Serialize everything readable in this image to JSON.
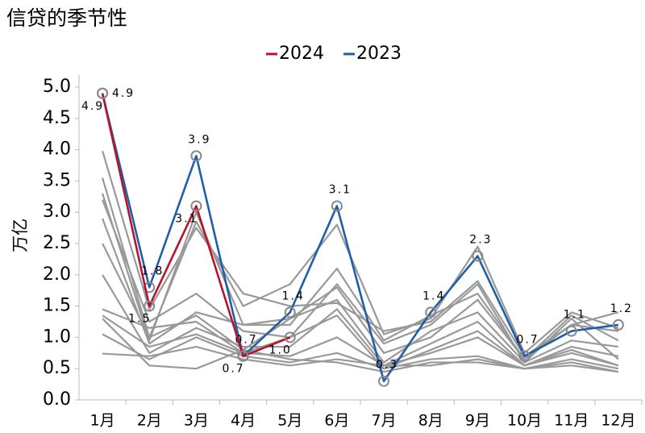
{
  "chart_data": {
    "type": "line",
    "title": "信贷的季节性",
    "ylabel": "万亿",
    "categories": [
      "1月",
      "2月",
      "3月",
      "4月",
      "5月",
      "6月",
      "7月",
      "8月",
      "9月",
      "10月",
      "11月",
      "12月"
    ],
    "ylim": [
      0,
      5
    ],
    "yticks": [
      {
        "value": 0,
        "label": "0.0"
      },
      {
        "value": 0.5,
        "label": "0.5"
      },
      {
        "value": 1,
        "label": "1.0"
      },
      {
        "value": 1.5,
        "label": "1.5"
      },
      {
        "value": 2,
        "label": "2.0"
      },
      {
        "value": 2.5,
        "label": "2.5"
      },
      {
        "value": 3,
        "label": "3.0"
      },
      {
        "value": 3.5,
        "label": "3.5"
      },
      {
        "value": 4,
        "label": "4.0"
      },
      {
        "value": 4.5,
        "label": "4.5"
      },
      {
        "value": 5,
        "label": "5.0"
      }
    ],
    "legend": "top",
    "series": [
      {
        "name": "2024",
        "color": "#b5152b",
        "values": [
          4.9,
          1.5,
          3.1,
          0.7,
          1.0,
          null,
          null,
          null,
          null,
          null,
          null,
          null
        ],
        "value_labels": [
          "4.9",
          "1.5",
          "3.1",
          "0.7",
          "1.0",
          null,
          null,
          null,
          null,
          null,
          null,
          null
        ]
      },
      {
        "name": "2023",
        "color": "#1f5ea8",
        "values": [
          4.9,
          1.8,
          3.9,
          0.7,
          1.4,
          3.1,
          0.3,
          1.4,
          2.3,
          0.7,
          1.1,
          1.2
        ],
        "value_labels": [
          "4.9",
          "1.8",
          "3.9",
          "0.7",
          "1.4",
          "3.1",
          "0.3",
          "1.4",
          "2.3",
          "0.7",
          "1.1",
          "1.2"
        ]
      },
      {
        "color": "#999999",
        "values": [
          3.98,
          1.45,
          2.75,
          1.7,
          1.5,
          1.55,
          1.1,
          1.25,
          1.9,
          0.7,
          1.2,
          1.4
        ]
      },
      {
        "color": "#999999",
        "values": [
          3.55,
          1.0,
          2.85,
          1.5,
          1.85,
          2.8,
          1.05,
          1.3,
          2.45,
          0.75,
          1.4,
          1.15
        ]
      },
      {
        "color": "#999999",
        "values": [
          3.3,
          0.95,
          3.0,
          1.2,
          1.2,
          2.1,
          0.95,
          1.35,
          1.7,
          0.65,
          1.35,
          0.95
        ]
      },
      {
        "color": "#999999",
        "values": [
          3.2,
          1.25,
          1.7,
          1.1,
          1.0,
          1.85,
          0.9,
          1.2,
          1.85,
          0.6,
          1.3,
          0.65
        ]
      },
      {
        "color": "#999999",
        "values": [
          2.9,
          0.9,
          1.4,
          1.2,
          1.3,
          1.8,
          0.75,
          1.0,
          1.6,
          0.65,
          1.2,
          1.1
        ]
      },
      {
        "color": "#999999",
        "values": [
          2.5,
          1.0,
          1.35,
          0.8,
          1.3,
          1.6,
          0.6,
          1.1,
          1.4,
          0.6,
          0.95,
          0.85
        ]
      },
      {
        "color": "#999999",
        "values": [
          2.0,
          0.75,
          1.15,
          0.85,
          0.85,
          1.45,
          0.55,
          0.9,
          1.25,
          0.55,
          0.85,
          0.7
        ]
      },
      {
        "color": "#999999",
        "values": [
          1.45,
          1.15,
          1.25,
          0.75,
          1.0,
          1.35,
          0.5,
          0.8,
          1.1,
          0.55,
          0.8,
          0.55
        ]
      },
      {
        "color": "#999999",
        "values": [
          1.35,
          0.85,
          1.05,
          0.75,
          0.7,
          1.0,
          0.55,
          0.75,
          1.0,
          0.55,
          0.75,
          0.55
        ]
      },
      {
        "color": "#999999",
        "values": [
          1.05,
          0.65,
          1.0,
          0.7,
          0.6,
          0.75,
          0.5,
          0.65,
          0.7,
          0.5,
          0.65,
          0.5
        ]
      },
      {
        "color": "#999999",
        "values": [
          0.74,
          0.7,
          0.85,
          0.65,
          0.55,
          0.65,
          0.55,
          0.55,
          0.65,
          0.5,
          0.6,
          0.45
        ]
      },
      {
        "color": "#999999",
        "values": [
          1.3,
          0.55,
          0.5,
          0.8,
          0.65,
          0.6,
          0.45,
          0.6,
          0.6,
          0.5,
          0.55,
          0.45
        ]
      }
    ]
  }
}
